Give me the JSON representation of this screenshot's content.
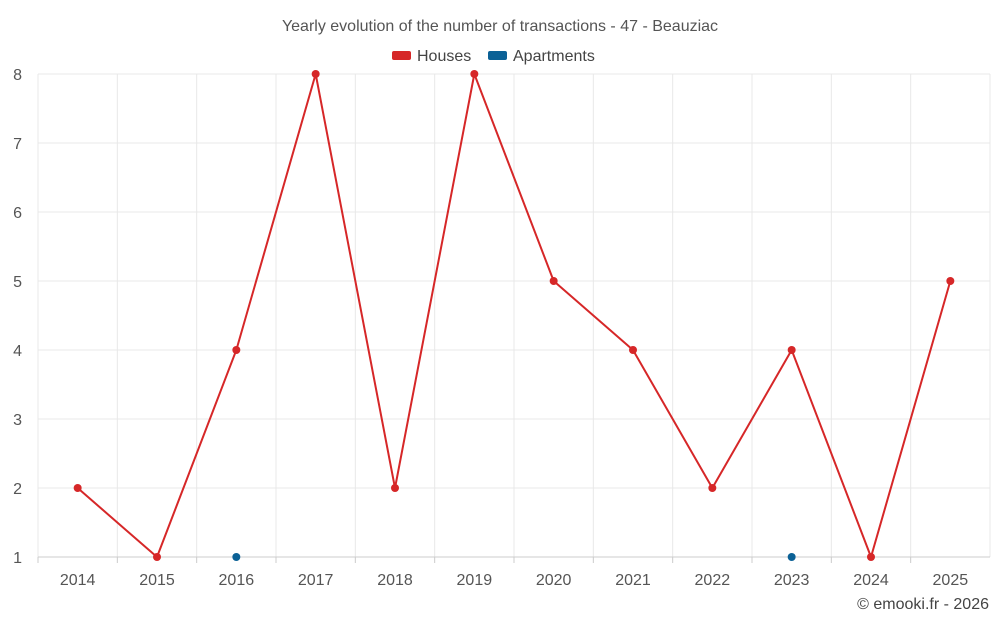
{
  "chart_data": {
    "type": "line",
    "title": "Yearly evolution of the number of transactions - 47 - Beauziac",
    "categories": [
      "2014",
      "2015",
      "2016",
      "2017",
      "2018",
      "2019",
      "2020",
      "2021",
      "2022",
      "2023",
      "2024",
      "2025"
    ],
    "series": [
      {
        "name": "Houses",
        "color": "#d62728",
        "values": [
          2,
          1,
          4,
          8,
          2,
          8,
          5,
          4,
          2,
          4,
          1,
          5
        ]
      },
      {
        "name": "Apartments",
        "color": "#0b6196",
        "values": [
          null,
          null,
          1,
          null,
          null,
          null,
          null,
          null,
          null,
          1,
          null,
          null
        ]
      }
    ],
    "ylim": [
      1,
      8
    ],
    "yticks": [
      1,
      2,
      3,
      4,
      5,
      6,
      7,
      8
    ],
    "grid": true,
    "legend_position": "top-center",
    "xlabel": "",
    "ylabel": ""
  },
  "credit": "© emooki.fr - 2026"
}
